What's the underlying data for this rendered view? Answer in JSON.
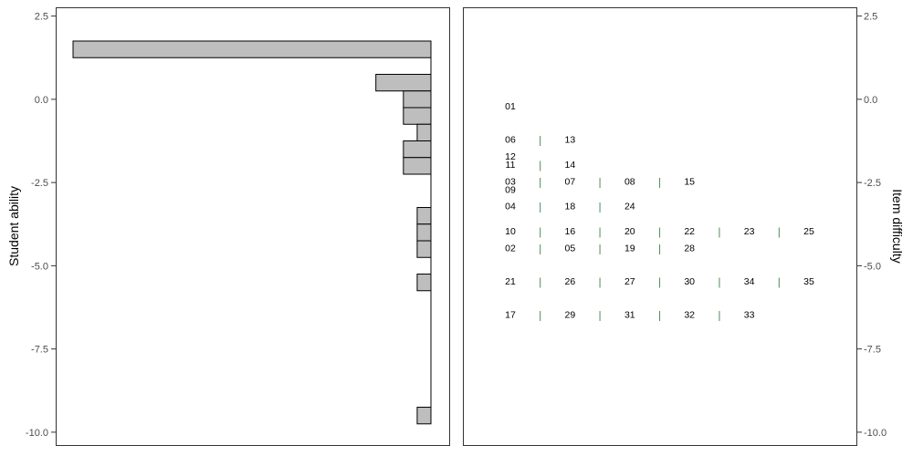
{
  "chart_data": [
    {
      "type": "bar",
      "orientation": "horizontal",
      "ylabel": "Student ability",
      "ylim": [
        -10.4,
        2.75
      ],
      "yticks": [
        "2.5",
        "0.0",
        "-2.5",
        "-5.0",
        "-7.5",
        "-10.0"
      ],
      "ytick_values": [
        2.5,
        0.0,
        -2.5,
        -5.0,
        -7.5,
        -10.0
      ],
      "bars": [
        {
          "y": 1.5,
          "count": 26
        },
        {
          "y": 0.5,
          "count": 4
        },
        {
          "y": 0.0,
          "count": 2
        },
        {
          "y": -0.5,
          "count": 2
        },
        {
          "y": -1.0,
          "count": 1
        },
        {
          "y": -1.5,
          "count": 2
        },
        {
          "y": -2.0,
          "count": 2
        },
        {
          "y": -3.5,
          "count": 1
        },
        {
          "y": -4.0,
          "count": 1
        },
        {
          "y": -4.5,
          "count": 1
        },
        {
          "y": -5.5,
          "count": 1
        },
        {
          "y": -9.5,
          "count": 1
        }
      ],
      "bar_fill": "#bebebe",
      "bar_stroke": "#000000"
    },
    {
      "type": "scatter",
      "ylabel": "Item difficulty",
      "ylim": [
        -10.4,
        2.75
      ],
      "yticks": [
        "2.5",
        "0.0",
        "-2.5",
        "-5.0",
        "-7.5",
        "-10.0"
      ],
      "ytick_values": [
        2.5,
        0.0,
        -2.5,
        -5.0,
        -7.5,
        -10.0
      ],
      "separator": "|",
      "separator_color": "#4a8a5a",
      "rows": [
        {
          "y": -0.2,
          "items": [
            "01"
          ]
        },
        {
          "y": -1.2,
          "items": [
            "06",
            "13"
          ]
        },
        {
          "y": -1.7,
          "items": [
            "12"
          ]
        },
        {
          "y": -1.95,
          "items": [
            "11",
            "14"
          ]
        },
        {
          "y": -2.45,
          "items": [
            "03",
            "07",
            "08",
            "15"
          ]
        },
        {
          "y": -2.7,
          "items": [
            "09"
          ]
        },
        {
          "y": -3.2,
          "items": [
            "04",
            "18",
            "24"
          ]
        },
        {
          "y": -3.95,
          "items": [
            "10",
            "16",
            "20",
            "22",
            "23",
            "25"
          ]
        },
        {
          "y": -4.45,
          "items": [
            "02",
            "05",
            "19",
            "28"
          ]
        },
        {
          "y": -5.45,
          "items": [
            "21",
            "26",
            "27",
            "30",
            "34",
            "35"
          ]
        },
        {
          "y": -6.45,
          "items": [
            "17",
            "29",
            "31",
            "32",
            "33"
          ]
        }
      ]
    }
  ]
}
